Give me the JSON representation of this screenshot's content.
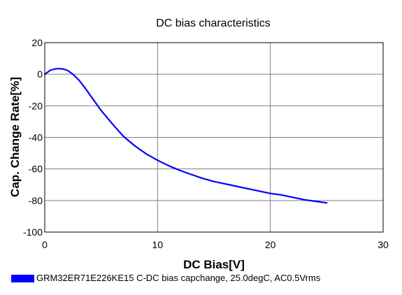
{
  "chart_data": {
    "type": "line",
    "title": "DC bias characteristics",
    "xlabel": "DC Bias[V]",
    "ylabel": "Cap. Change Rate[%]",
    "xlim": [
      0,
      30
    ],
    "ylim": [
      -100,
      20
    ],
    "xticks": [
      0,
      10,
      20,
      30
    ],
    "yticks": [
      20,
      0,
      -20,
      -40,
      -60,
      -80,
      -100
    ],
    "grid": true,
    "legend_position": "bottom-left",
    "series": [
      {
        "name": "GRM32ER71E226KE15 C-DC bias capchange, 25.0degC, AC0.5Vrms",
        "color": "#0000ff",
        "x": [
          0,
          0.5,
          1,
          1.5,
          2,
          2.5,
          3,
          3.5,
          4,
          4.5,
          5,
          6,
          7,
          8,
          9,
          10,
          11,
          12,
          13,
          14,
          15,
          16,
          17,
          18,
          19,
          20,
          21,
          22,
          23,
          24,
          25
        ],
        "y": [
          0,
          2.5,
          3.5,
          3.5,
          2.5,
          0,
          -3.5,
          -8,
          -13,
          -18,
          -23,
          -31.5,
          -39.5,
          -45.5,
          -50.5,
          -54.5,
          -58,
          -61,
          -63.5,
          -66,
          -68,
          -69.5,
          -71,
          -72.5,
          -74,
          -75.5,
          -76.5,
          -78,
          -79.5,
          -80.5,
          -81.5
        ]
      }
    ]
  }
}
